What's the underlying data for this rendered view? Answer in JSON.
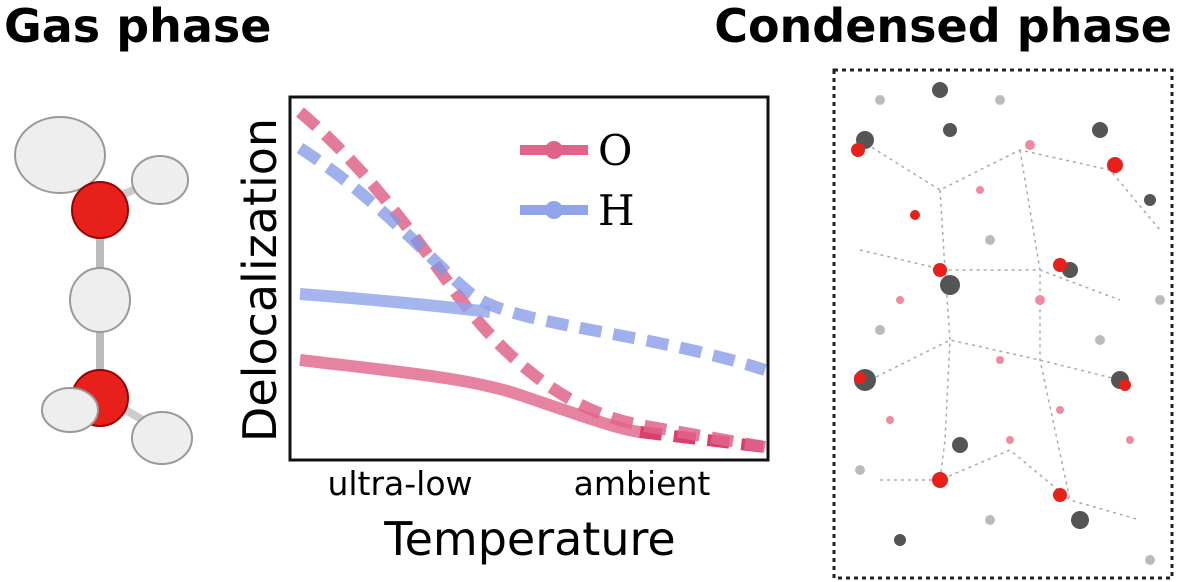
{
  "header": {
    "left_title": "Gas phase",
    "right_title": "Condensed phase"
  },
  "plot": {
    "y_label": "Delocalization",
    "x_label": "Temperature",
    "x_labels": [
      "ultra-low",
      "ambient"
    ],
    "legend": [
      "O",
      "H"
    ]
  }
}
